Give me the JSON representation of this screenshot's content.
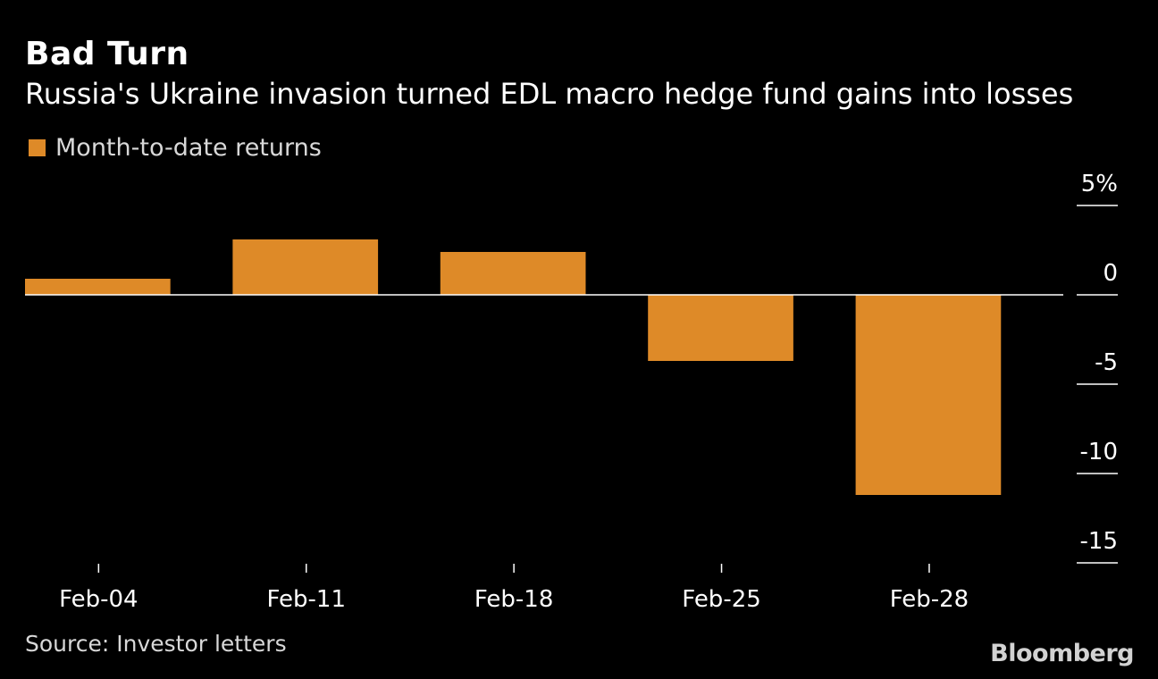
{
  "header": {
    "title": "Bad Turn",
    "subtitle": "Russia's Ukraine invasion turned EDL macro hedge fund gains into losses"
  },
  "legend": {
    "label": "Month-to-date returns"
  },
  "footer": {
    "source": "Source: Investor letters",
    "brand": "Bloomberg"
  },
  "colors": {
    "background": "#000000",
    "bar": "#DE8A28",
    "text": "#FFFFFF",
    "muted_text": "#D8D8D8"
  },
  "chart_data": {
    "type": "bar",
    "title": "Bad Turn",
    "subtitle": "Russia's Ukraine invasion turned EDL macro hedge fund gains into losses",
    "categories": [
      "Feb-04",
      "Feb-11",
      "Feb-18",
      "Feb-25",
      "Feb-28"
    ],
    "series": [
      {
        "name": "Month-to-date returns",
        "values": [
          0.9,
          3.1,
          2.4,
          -3.7,
          -11.2
        ]
      }
    ],
    "xlabel": "",
    "ylabel": "",
    "ylim": [
      -15,
      5
    ],
    "yticks": [
      5,
      0,
      -5,
      -10,
      -15
    ],
    "ytick_labels": [
      "5%",
      "0",
      "-5",
      "-10",
      "-15"
    ],
    "y_axis_position": "right",
    "grid": false,
    "legend_position": "top-left"
  }
}
